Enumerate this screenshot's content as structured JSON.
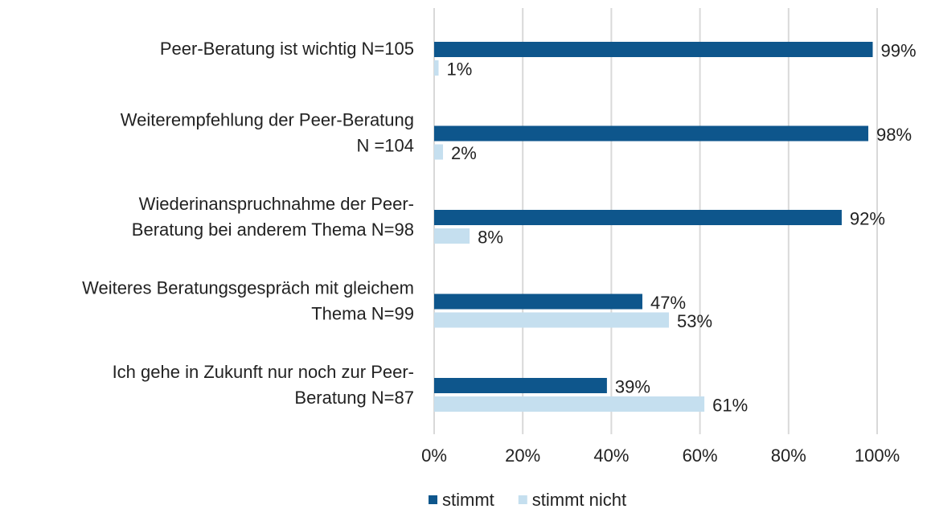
{
  "chart_data": {
    "type": "bar",
    "orientation": "horizontal",
    "categories": [
      [
        "Peer-Beratung ist wichtig N=105"
      ],
      [
        "Weiterempfehlung der Peer-Beratung",
        "N =104"
      ],
      [
        "Wiederinanspruchnahme der Peer-",
        "Beratung bei anderem Thema N=98"
      ],
      [
        "Weiteres Beratungsgespräch mit gleichem",
        "Thema N=99"
      ],
      [
        "Ich gehe in Zukunft nur noch zur Peer-",
        "Beratung N=87"
      ]
    ],
    "series": [
      {
        "name": "stimmt",
        "color": "#0e568c",
        "values": [
          99,
          98,
          92,
          47,
          39
        ],
        "value_labels": [
          "99%",
          "98%",
          "92%",
          "47%",
          "39%"
        ]
      },
      {
        "name": "stimmt nicht",
        "color": "#c5dfef",
        "values": [
          1,
          2,
          8,
          53,
          61
        ],
        "value_labels": [
          "1%",
          "2%",
          "8%",
          "53%",
          "61%"
        ]
      }
    ],
    "xlim": [
      0,
      100
    ],
    "xticks": [
      {
        "value": 0,
        "label": "0%"
      },
      {
        "value": 20,
        "label": "20%"
      },
      {
        "value": 40,
        "label": "40%"
      },
      {
        "value": 60,
        "label": "60%"
      },
      {
        "value": 80,
        "label": "80%"
      },
      {
        "value": 100,
        "label": "100%"
      }
    ],
    "grid": true,
    "legend": "bottom"
  }
}
